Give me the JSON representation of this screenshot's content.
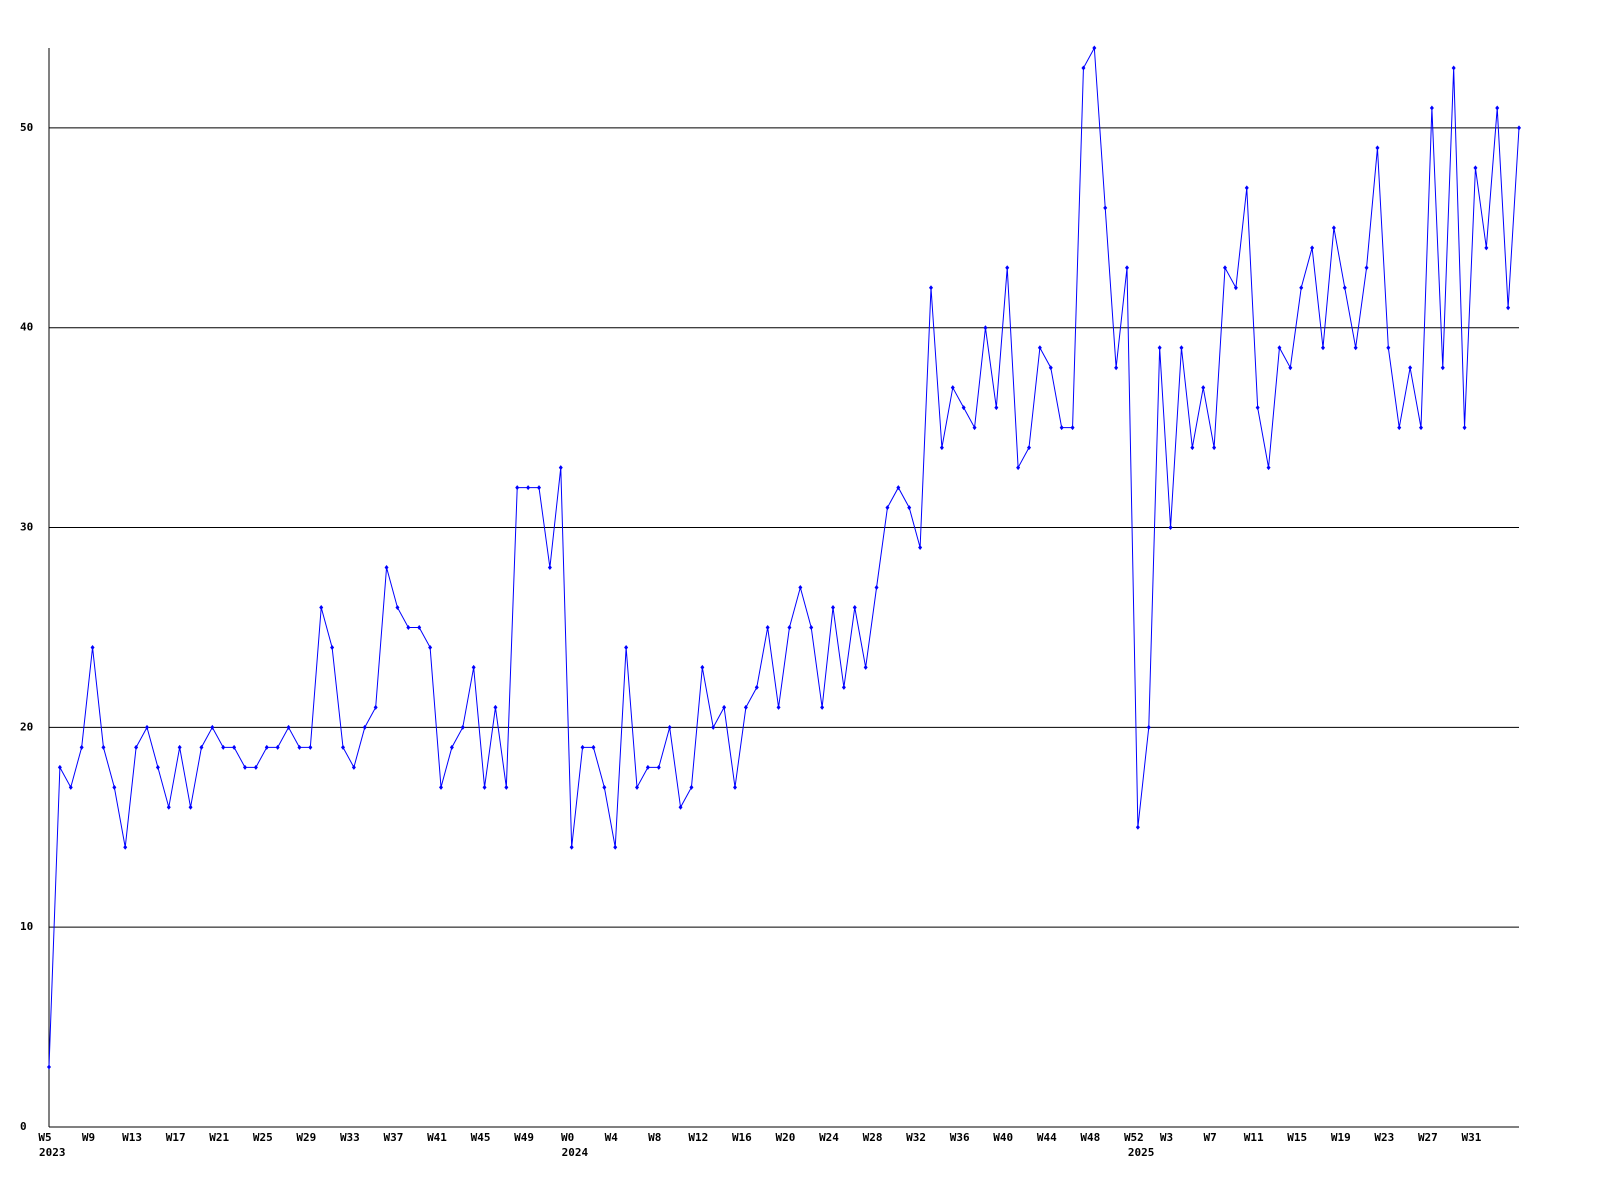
{
  "chart_data": {
    "type": "line",
    "categories": [
      "W5",
      null,
      null,
      null,
      "W9",
      null,
      null,
      null,
      "W13",
      null,
      null,
      null,
      "W17",
      null,
      null,
      null,
      "W21",
      null,
      null,
      null,
      "W25",
      null,
      null,
      null,
      "W29",
      null,
      null,
      null,
      "W33",
      null,
      null,
      null,
      "W37",
      null,
      null,
      null,
      "W41",
      null,
      null,
      null,
      "W45",
      null,
      null,
      null,
      "W49",
      null,
      null,
      null,
      "W0",
      null,
      null,
      null,
      "W4",
      null,
      null,
      null,
      "W8",
      null,
      null,
      null,
      "W12",
      null,
      null,
      null,
      "W16",
      null,
      null,
      null,
      "W20",
      null,
      null,
      null,
      "W24",
      null,
      null,
      null,
      "W28",
      null,
      null,
      null,
      "W32",
      null,
      null,
      null,
      "W36",
      null,
      null,
      null,
      "W40",
      null,
      null,
      null,
      "W44",
      null,
      null,
      null,
      "W48",
      null,
      null,
      null,
      "W52",
      null,
      null,
      "W3",
      null,
      null,
      null,
      "W7",
      null,
      null,
      null,
      "W11",
      null,
      null,
      null,
      "W15",
      null,
      null,
      null,
      "W19",
      null,
      null,
      null,
      "W23",
      null,
      null,
      null,
      "W27",
      null,
      null,
      null,
      "W31",
      null,
      null,
      null,
      null
    ],
    "years": [
      "2023",
      null,
      null,
      null,
      null,
      null,
      null,
      null,
      null,
      null,
      null,
      null,
      null,
      null,
      null,
      null,
      null,
      null,
      null,
      null,
      null,
      null,
      null,
      null,
      null,
      null,
      null,
      null,
      null,
      null,
      null,
      null,
      null,
      null,
      null,
      null,
      null,
      null,
      null,
      null,
      null,
      null,
      null,
      null,
      null,
      null,
      null,
      null,
      "2024",
      null,
      null,
      null,
      null,
      null,
      null,
      null,
      null,
      null,
      null,
      null,
      null,
      null,
      null,
      null,
      null,
      null,
      null,
      null,
      null,
      null,
      null,
      null,
      null,
      null,
      null,
      null,
      null,
      null,
      null,
      null,
      null,
      null,
      null,
      null,
      null,
      null,
      null,
      null,
      null,
      null,
      null,
      null,
      null,
      null,
      null,
      null,
      null,
      null,
      null,
      null,
      "2025",
      null,
      null,
      null,
      null,
      null,
      null,
      null,
      null,
      null,
      null,
      null,
      null,
      null,
      null,
      null,
      null,
      null,
      null,
      null,
      null,
      null,
      null,
      null,
      null,
      null,
      null,
      null,
      null,
      null,
      null,
      null,
      null,
      null,
      null,
      null
    ],
    "values": [
      3,
      18,
      17,
      19,
      24,
      19,
      17,
      14,
      19,
      20,
      18,
      16,
      19,
      16,
      19,
      20,
      19,
      19,
      18,
      18,
      19,
      19,
      20,
      19,
      19,
      26,
      24,
      19,
      18,
      20,
      21,
      28,
      26,
      25,
      25,
      24,
      17,
      19,
      20,
      23,
      17,
      21,
      17,
      32,
      32,
      32,
      28,
      33,
      14,
      19,
      19,
      17,
      14,
      24,
      17,
      18,
      18,
      20,
      16,
      17,
      23,
      20,
      21,
      17,
      21,
      22,
      25,
      21,
      25,
      27,
      25,
      21,
      26,
      22,
      26,
      23,
      27,
      31,
      32,
      31,
      29,
      42,
      34,
      37,
      36,
      35,
      40,
      36,
      43,
      33,
      34,
      39,
      38,
      35,
      35,
      53,
      54,
      46,
      38,
      43,
      15,
      20,
      39,
      30,
      39,
      34,
      37,
      34,
      43,
      42,
      47,
      36,
      33,
      39,
      38,
      42,
      44,
      39,
      45,
      42,
      39,
      43,
      49,
      39,
      35,
      38,
      35,
      51,
      38,
      53,
      35,
      48,
      44,
      51,
      41,
      50
    ],
    "color": "#0000ff",
    "ylim": [
      0,
      54
    ],
    "yticks": [
      0,
      10,
      20,
      30,
      40,
      50
    ],
    "grid": true
  }
}
